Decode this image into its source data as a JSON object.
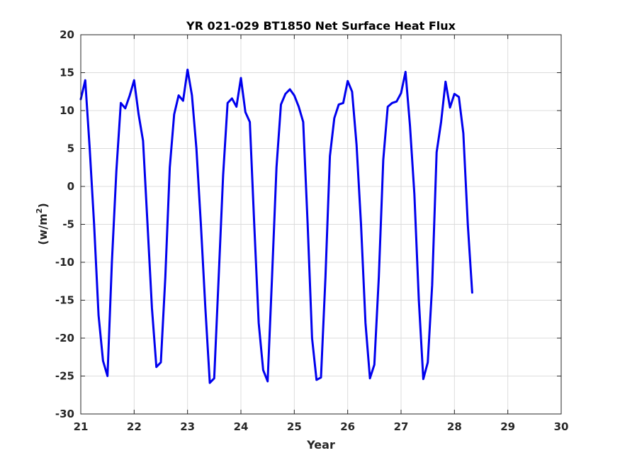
{
  "chart_data": {
    "type": "line",
    "title": "YR 021-029 BT1850 Net Surface Heat Flux",
    "xlabel": "Year",
    "ylabel": "(w/m",
    "ylabel_sup": "2",
    "ylabel_end": ")",
    "xlim": [
      21,
      30
    ],
    "ylim": [
      -30,
      20
    ],
    "xticks": [
      21,
      22,
      23,
      24,
      25,
      26,
      27,
      28,
      29,
      30
    ],
    "yticks": [
      -30,
      -25,
      -20,
      -15,
      -10,
      -5,
      0,
      5,
      10,
      15,
      20
    ],
    "grid": true,
    "line_color": "#0000ee",
    "series": [
      {
        "x": [
          21.0,
          21.083,
          21.167,
          21.25,
          21.333,
          21.417,
          21.5,
          21.583,
          21.667,
          21.75,
          21.833,
          21.917,
          22.0,
          22.083,
          22.167,
          22.25,
          22.333,
          22.417,
          22.5,
          22.583,
          22.667,
          22.75,
          22.833,
          22.917,
          23.0,
          23.083,
          23.167,
          23.25,
          23.333,
          23.417,
          23.5,
          23.583,
          23.667,
          23.75,
          23.833,
          23.917,
          24.0,
          24.083,
          24.167,
          24.25,
          24.333,
          24.417,
          24.5,
          24.583,
          24.667,
          24.75,
          24.833,
          24.917,
          25.0,
          25.083,
          25.167,
          25.25,
          25.333,
          25.417,
          25.5,
          25.583,
          25.667,
          25.75,
          25.833,
          25.917,
          26.0,
          26.083,
          26.167,
          26.25,
          26.333,
          26.417,
          26.5,
          26.583,
          26.667,
          26.75,
          26.833,
          26.917,
          27.0,
          27.083,
          27.167,
          27.25,
          27.333,
          27.417,
          27.5,
          27.583,
          27.667,
          27.75,
          27.833,
          27.917,
          28.0,
          28.083,
          28.167,
          28.25,
          28.333
        ],
        "y": [
          11.5,
          14.0,
          5.0,
          -5.0,
          -17.0,
          -23.0,
          -25.0,
          -10.0,
          2.0,
          11.0,
          10.3,
          12.0,
          14.0,
          9.5,
          6.0,
          -5.0,
          -16.0,
          -23.8,
          -23.2,
          -12.0,
          2.5,
          9.5,
          12.0,
          11.3,
          15.4,
          12.0,
          5.0,
          -5.0,
          -16.0,
          -25.9,
          -25.3,
          -12.0,
          1.5,
          11.0,
          11.6,
          10.5,
          14.3,
          9.8,
          8.5,
          -5.0,
          -18.0,
          -24.2,
          -25.7,
          -12.0,
          2.5,
          10.8,
          12.2,
          12.8,
          12.0,
          10.5,
          8.5,
          -5.0,
          -20.0,
          -25.5,
          -25.2,
          -12.0,
          4.0,
          9.0,
          10.8,
          11.0,
          13.9,
          12.5,
          5.5,
          -5.0,
          -18.0,
          -25.3,
          -23.5,
          -12.0,
          3.5,
          10.5,
          11.0,
          11.2,
          12.3,
          15.1,
          8.0,
          -1.0,
          -15.0,
          -25.4,
          -23.2,
          -13.0,
          4.5,
          8.5,
          13.8,
          10.4,
          12.2,
          11.8,
          7.0,
          -5.0,
          -14.0
        ]
      }
    ]
  }
}
